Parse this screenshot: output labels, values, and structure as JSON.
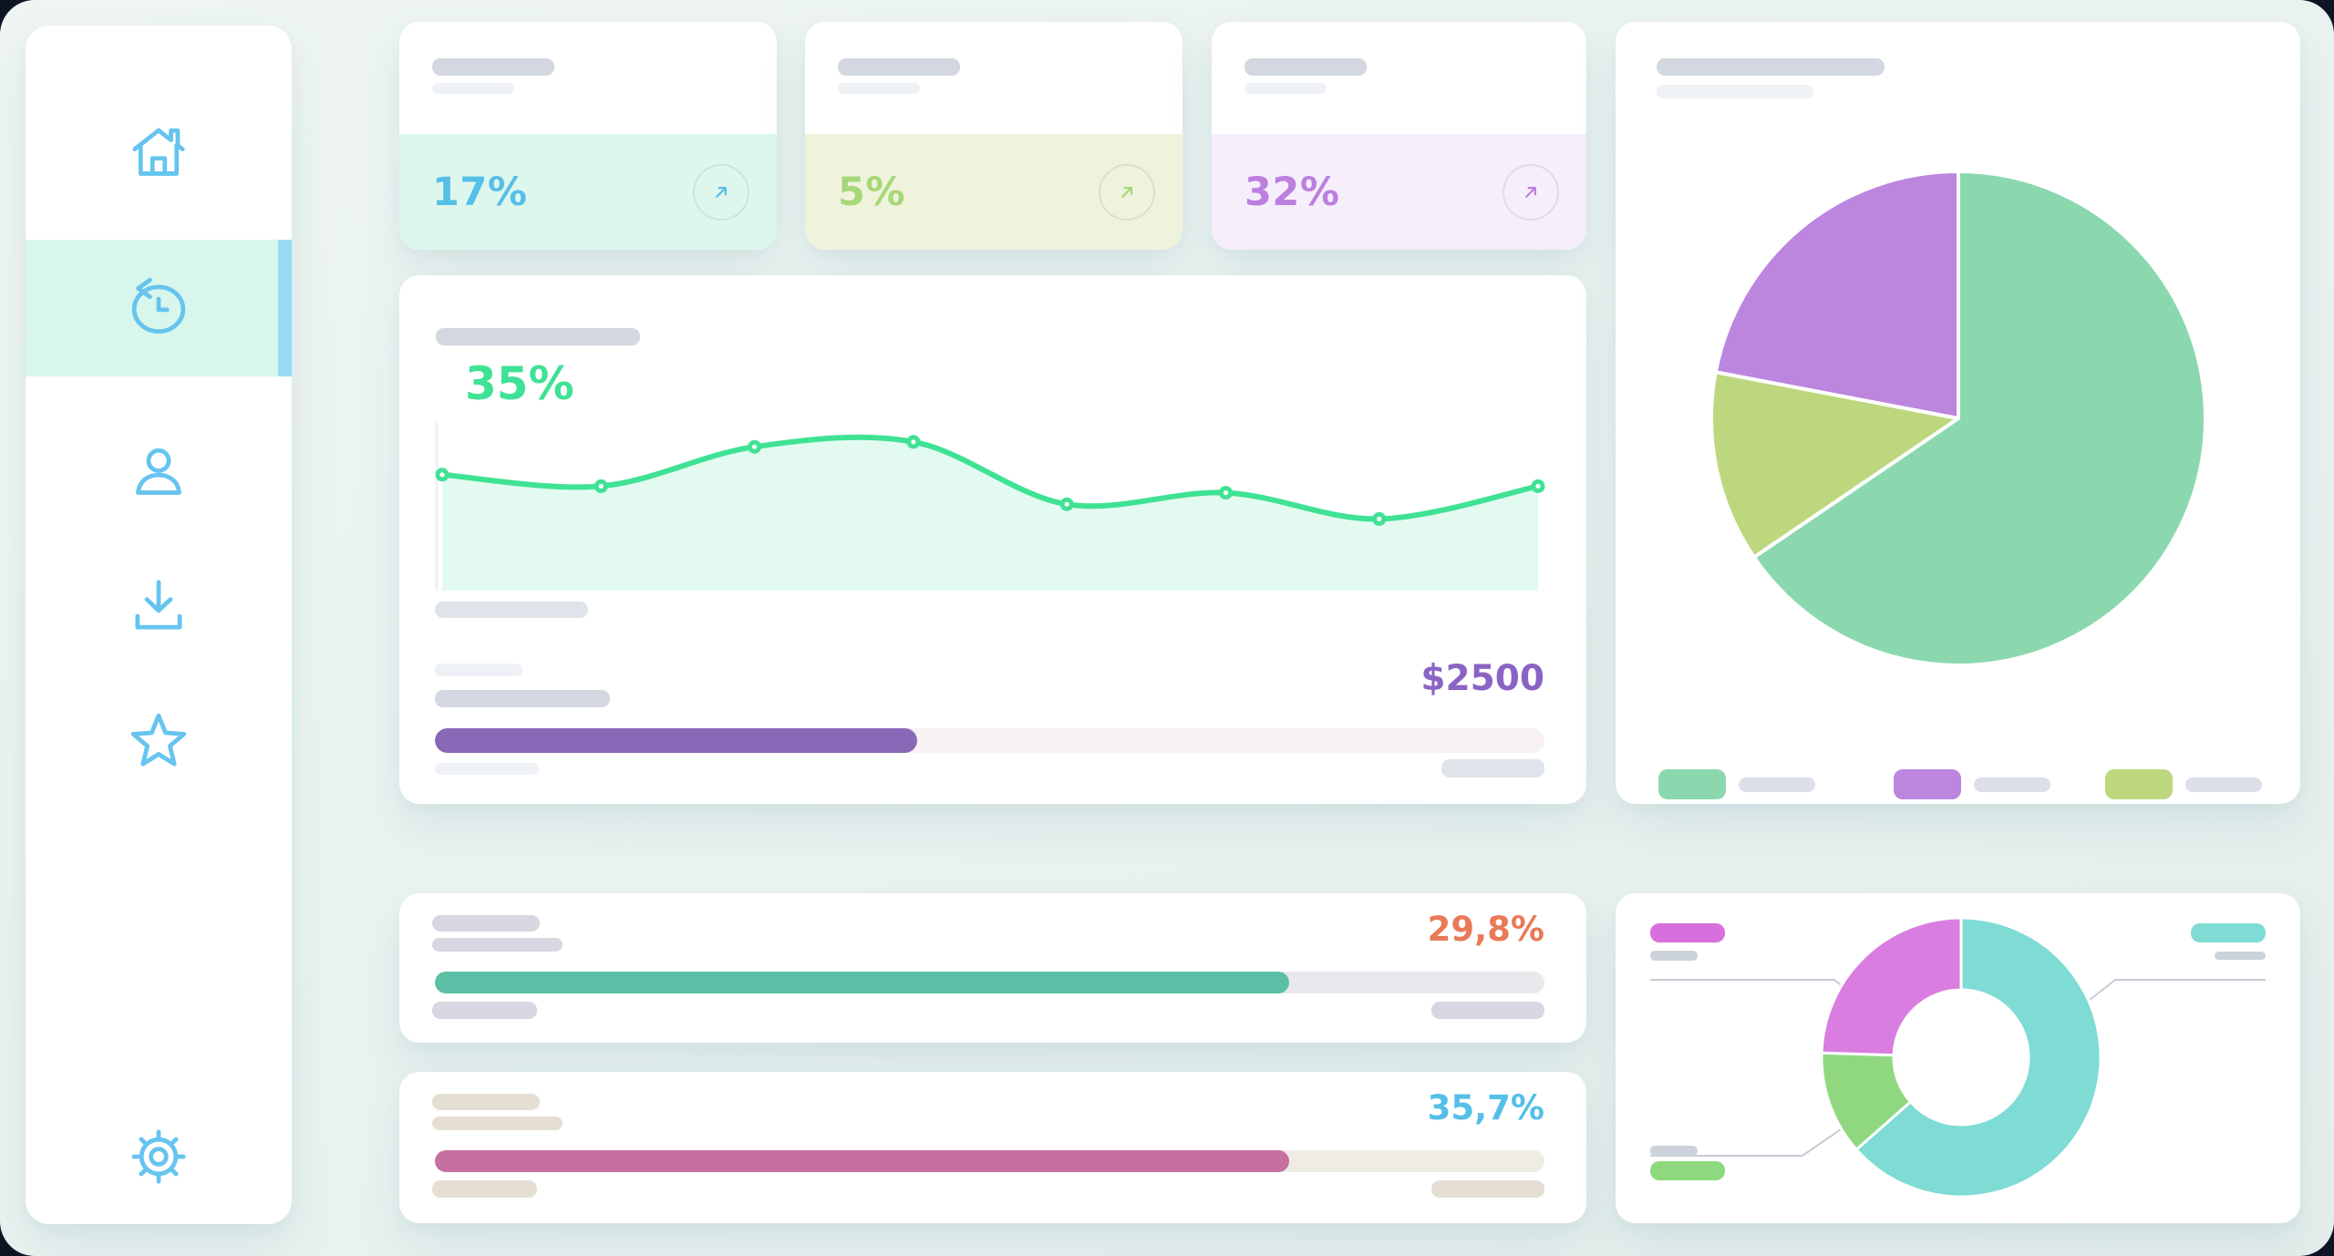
{
  "app": {
    "frame_background": "#0d1524",
    "page_background": "#e9f2f0",
    "card_background": "#ffffff"
  },
  "sidebar": {
    "icon_color": "#66c4ef",
    "active_item_background": "#d9f6ec",
    "active_indicator_color": "#98dbf1",
    "items": [
      {
        "id": "home",
        "icon": "home-icon",
        "active": false
      },
      {
        "id": "history",
        "icon": "history-icon",
        "active": true
      },
      {
        "id": "profile",
        "icon": "user-icon",
        "active": false
      },
      {
        "id": "downloads",
        "icon": "download-icon",
        "active": false
      },
      {
        "id": "favorites",
        "icon": "star-icon",
        "active": false
      }
    ],
    "footer_item": {
      "id": "settings",
      "icon": "gear-icon"
    }
  },
  "stat_cards": [
    {
      "value": "17%",
      "value_color": "#56bfe8",
      "panel_background": "#def7ec",
      "trend_icon": "arrow-up-right-icon"
    },
    {
      "value": "5%",
      "value_color": "#a6d878",
      "panel_background": "#eff3dc",
      "trend_icon": "arrow-up-right-icon"
    },
    {
      "value": "32%",
      "value_color": "#bb7fe0",
      "panel_background": "#f6eefa",
      "trend_icon": "arrow-up-right-icon"
    }
  ],
  "trend_card": {
    "value": "35%",
    "value_color": "#3fe294",
    "amount": "$2500",
    "amount_color": "#8a64c4",
    "progress": {
      "fill_pct": 43.5,
      "fill_color": "#8a68b8",
      "track_color": "#f8f2f4"
    }
  },
  "metric_cards": [
    {
      "value": "29,8%",
      "value_color": "#e87a58",
      "bar_fill_pct": 77,
      "bar_color": "#5abfa5",
      "track_color": "#e9e8ed",
      "skeleton_color": "#d8d6e1"
    },
    {
      "value": "35,7%",
      "value_color": "#56bfe8",
      "bar_fill_pct": 77,
      "bar_color": "#c76f9f",
      "track_color": "#efece4",
      "skeleton_color": "#e5dfd3"
    }
  ],
  "pie_card": {
    "legend": [
      {
        "color": "#8bd8ae"
      },
      {
        "color": "#bc85de"
      },
      {
        "color": "#bdd77f"
      }
    ]
  },
  "donut_card": {
    "callouts": [
      {
        "position": "top-left",
        "color": "#d76fdc"
      },
      {
        "position": "top-right",
        "color": "#7edcd4"
      },
      {
        "position": "bottom-left",
        "color": "#8ed97e"
      }
    ]
  },
  "chart_data": [
    {
      "type": "area",
      "x": [
        0,
        14.5,
        28.5,
        43,
        57,
        71.5,
        85.5,
        100
      ],
      "values": [
        69,
        62,
        86,
        89,
        51,
        58,
        42,
        62
      ],
      "label_value": "35%",
      "line_color": "#3fe294",
      "fill_color": "#e3faf1",
      "markers": true,
      "axes_hidden": true,
      "ylim": [
        0,
        100
      ]
    },
    {
      "type": "pie",
      "slices": [
        {
          "pct": 65.5,
          "color": "#8bd8ae"
        },
        {
          "pct": 12.5,
          "color": "#bdd77f"
        },
        {
          "pct": 22.0,
          "color": "#bc85de"
        }
      ],
      "start_angle_deg": 0,
      "legend_position": "bottom"
    },
    {
      "type": "donut",
      "slices": [
        {
          "pct": 63.5,
          "color": "#7edcd4"
        },
        {
          "pct": 12.0,
          "color": "#8fd880"
        },
        {
          "pct": 24.5,
          "color": "#d97ee0"
        }
      ],
      "start_angle_deg": 0,
      "inner_radius_ratio": 0.48
    },
    {
      "type": "progress",
      "label": "29,8%",
      "fill_pct": 77,
      "color": "#5abfa5"
    },
    {
      "type": "progress",
      "label": "35,7%",
      "fill_pct": 77,
      "color": "#c76f9f"
    },
    {
      "type": "progress",
      "label": "$2500",
      "fill_pct": 43.5,
      "color": "#8a68b8"
    }
  ]
}
